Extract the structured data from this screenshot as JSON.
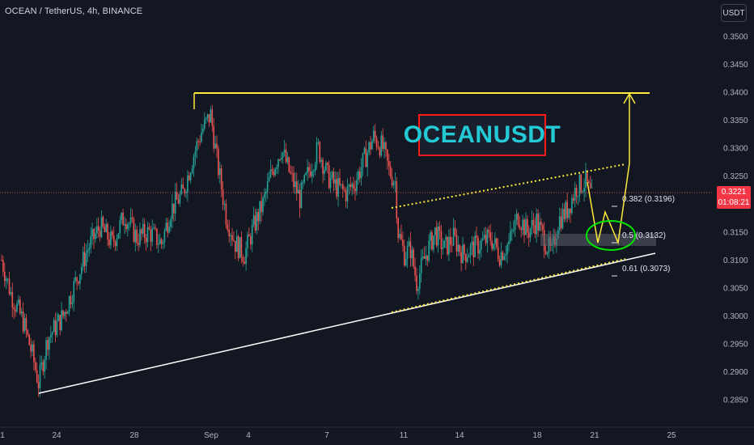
{
  "header": {
    "symbol_label": "OCEAN / TetherUS, 4h, BINANCE",
    "currency_button": "USDT"
  },
  "price_badge": {
    "price": "0.3221",
    "countdown": "01:08:21"
  },
  "annotation": {
    "title": "OCEANUSDT"
  },
  "colors": {
    "background": "#131722",
    "up": "#26a69a",
    "down": "#ef5350",
    "resistance": "#ffeb3b",
    "support": "#ffffff",
    "badge": "#f23645",
    "title_text": "#23c9d4",
    "title_border": "#ff1a1a",
    "ellipse": "#00e600"
  },
  "chart_data": {
    "type": "candlestick",
    "symbol": "OCEAN / TetherUS",
    "interval": "4h",
    "exchange": "BINANCE",
    "ylim": [
      0.2825,
      0.3545
    ],
    "y_ticks": [
      "0.3500",
      "0.3450",
      "0.3400",
      "0.3350",
      "0.3300",
      "0.3250",
      "0.3200",
      "0.3150",
      "0.3100",
      "0.3050",
      "0.3000",
      "0.2950",
      "0.2900",
      "0.2850"
    ],
    "x_ticks": [
      "1",
      "24",
      "28",
      "Sep",
      "4",
      "7",
      "11",
      "14",
      "18",
      "21",
      "25"
    ],
    "last_price": 0.3221,
    "levels": {
      "resistance": 0.34
    },
    "fib_levels": [
      {
        "label": "0.382 (0.3196)",
        "value": 0.3196
      },
      {
        "label": "0.5 (0.3132)",
        "value": 0.3132
      },
      {
        "label": "0.61 (0.3073)",
        "value": 0.3073
      }
    ],
    "candle_anchors": [
      [
        0,
        0.31
      ],
      [
        6,
        0.304
      ],
      [
        14,
        0.299
      ],
      [
        20,
        0.293
      ],
      [
        24,
        0.288
      ],
      [
        30,
        0.296
      ],
      [
        40,
        0.3
      ],
      [
        48,
        0.306
      ],
      [
        56,
        0.312
      ],
      [
        64,
        0.316
      ],
      [
        72,
        0.313
      ],
      [
        80,
        0.318
      ],
      [
        88,
        0.314
      ],
      [
        96,
        0.315
      ],
      [
        104,
        0.313
      ],
      [
        110,
        0.319
      ],
      [
        118,
        0.322
      ],
      [
        124,
        0.328
      ],
      [
        130,
        0.333
      ],
      [
        136,
        0.336
      ],
      [
        140,
        0.328
      ],
      [
        146,
        0.318
      ],
      [
        152,
        0.313
      ],
      [
        158,
        0.311
      ],
      [
        164,
        0.316
      ],
      [
        170,
        0.32
      ],
      [
        176,
        0.326
      ],
      [
        182,
        0.33
      ],
      [
        188,
        0.325
      ],
      [
        194,
        0.321
      ],
      [
        200,
        0.326
      ],
      [
        206,
        0.33
      ],
      [
        212,
        0.325
      ],
      [
        218,
        0.323
      ],
      [
        224,
        0.322
      ],
      [
        230,
        0.324
      ],
      [
        236,
        0.328
      ],
      [
        242,
        0.332
      ],
      [
        248,
        0.33
      ],
      [
        252,
        0.326
      ],
      [
        256,
        0.324
      ],
      [
        258,
        0.315
      ],
      [
        262,
        0.311
      ],
      [
        266,
        0.312
      ],
      [
        270,
        0.306
      ],
      [
        276,
        0.311
      ],
      [
        282,
        0.315
      ],
      [
        288,
        0.312
      ],
      [
        294,
        0.314
      ],
      [
        300,
        0.311
      ],
      [
        306,
        0.312
      ],
      [
        312,
        0.313
      ],
      [
        318,
        0.314
      ],
      [
        324,
        0.311
      ],
      [
        330,
        0.313
      ],
      [
        336,
        0.318
      ],
      [
        342,
        0.315
      ],
      [
        348,
        0.317
      ],
      [
        354,
        0.313
      ],
      [
        358,
        0.311
      ],
      [
        362,
        0.317
      ],
      [
        368,
        0.319
      ],
      [
        374,
        0.323
      ],
      [
        380,
        0.324
      ],
      [
        384,
        0.321
      ]
    ]
  }
}
